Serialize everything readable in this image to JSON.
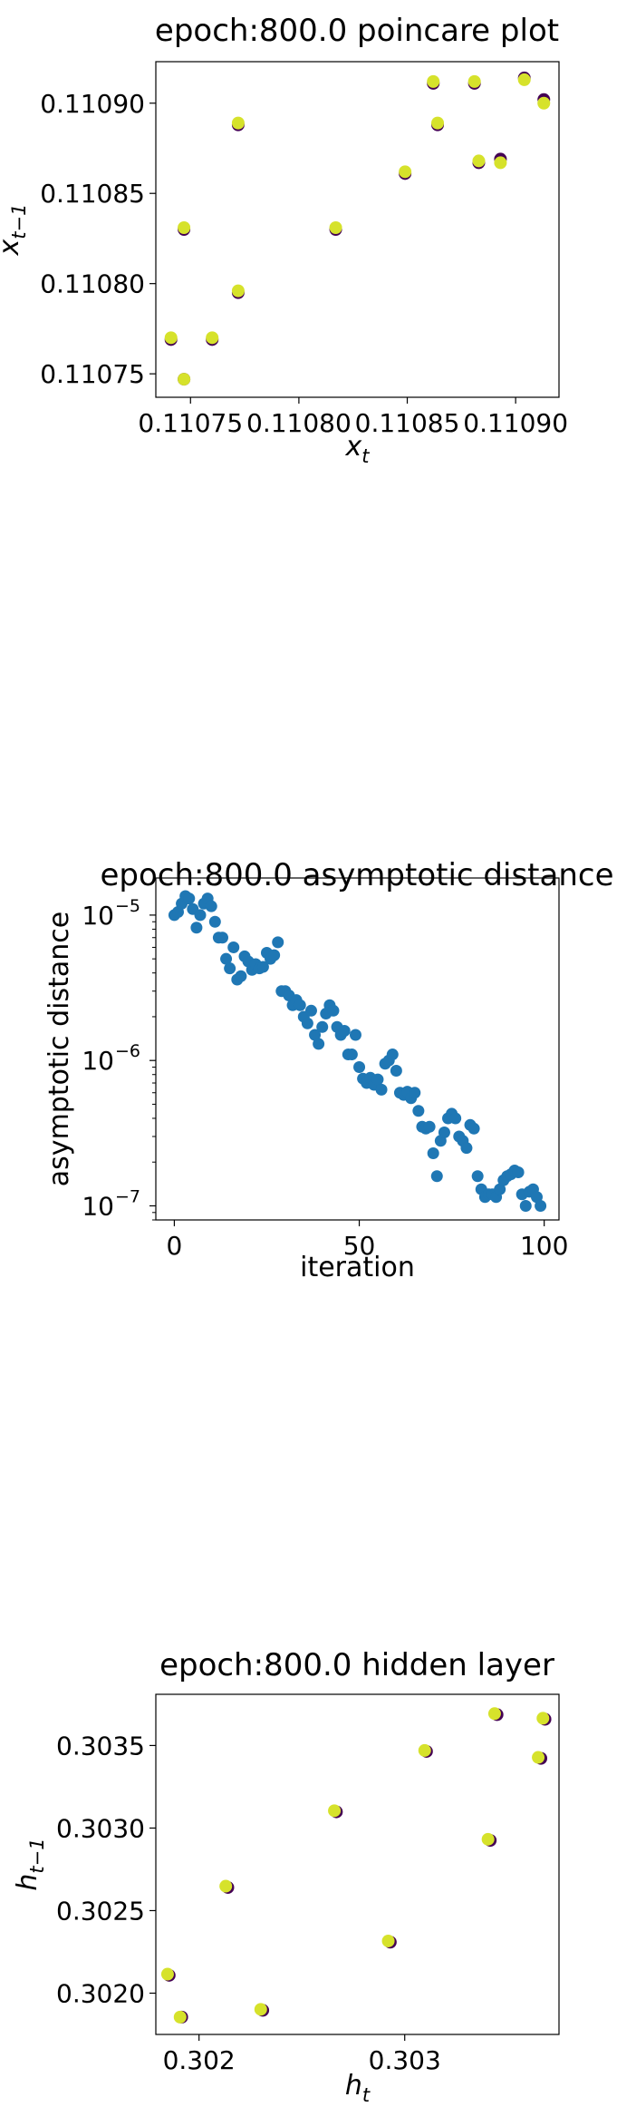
{
  "colors": {
    "dark_marker": "#440154",
    "yellow_marker": "#d6e22b",
    "blue_marker": "#1f77b4",
    "axis": "#000000",
    "background": "#ffffff"
  },
  "chart_data": [
    {
      "type": "scatter",
      "title": "epoch:800.0 poincare plot",
      "xlabel": "x_t",
      "ylabel": "x_{t-1}",
      "xlim": [
        0.110734,
        0.11092
      ],
      "ylim": [
        0.110737,
        0.110923
      ],
      "xticks": [
        0.11075,
        0.1108,
        0.11085,
        0.1109
      ],
      "xtick_labels": [
        "0.11075",
        "0.11080",
        "0.11085",
        "0.11090"
      ],
      "yticks": [
        0.11075,
        0.1108,
        0.11085,
        0.1109
      ],
      "ytick_labels": [
        "0.11075",
        "0.11080",
        "0.11085",
        "0.11090"
      ],
      "yscale": "linear",
      "series": [
        {
          "color": "#440154",
          "x": [
            0.110741,
            0.110747,
            0.110747,
            0.11076,
            0.110772,
            0.110772,
            0.110817,
            0.110849,
            0.110862,
            0.110864,
            0.110881,
            0.110883,
            0.110893,
            0.110904,
            0.110913
          ],
          "y": [
            0.110769,
            0.110747,
            0.11083,
            0.110769,
            0.110795,
            0.110888,
            0.11083,
            0.110861,
            0.110911,
            0.110888,
            0.110911,
            0.110867,
            0.110869,
            0.110914,
            0.110902
          ]
        },
        {
          "color": "#d6e22b",
          "x": [
            0.110741,
            0.110747,
            0.110747,
            0.11076,
            0.110772,
            0.110772,
            0.110817,
            0.110849,
            0.110862,
            0.110864,
            0.110881,
            0.110883,
            0.110893,
            0.110904,
            0.110913
          ],
          "y": [
            0.11077,
            0.110747,
            0.110831,
            0.11077,
            0.110796,
            0.110889,
            0.110831,
            0.110862,
            0.110912,
            0.110889,
            0.110912,
            0.110868,
            0.110867,
            0.110913,
            0.1109
          ]
        }
      ]
    },
    {
      "type": "scatter",
      "title": "epoch:800.0 asymptotic distance",
      "xlabel": "iteration",
      "ylabel": "asymptotic distance",
      "xlim": [
        -5,
        104
      ],
      "ylim": [
        8e-08,
        1.8e-05
      ],
      "yscale": "log",
      "xticks": [
        0,
        50,
        100
      ],
      "xtick_labels": [
        "0",
        "50",
        "100"
      ],
      "yticks": [
        1e-07,
        1e-06,
        1e-05
      ],
      "ytick_labels": [
        "10",
        "10",
        "10"
      ],
      "ytick_exponents": [
        "−7",
        "−6",
        "−5"
      ],
      "series": [
        {
          "color": "#1f77b4",
          "x": [
            0,
            1,
            2,
            3,
            4,
            5,
            6,
            7,
            8,
            9,
            10,
            11,
            12,
            13,
            14,
            15,
            16,
            17,
            18,
            19,
            20,
            21,
            22,
            23,
            24,
            25,
            26,
            27,
            28,
            29,
            30,
            31,
            32,
            33,
            34,
            35,
            36,
            37,
            38,
            39,
            40,
            41,
            42,
            43,
            44,
            45,
            46,
            47,
            48,
            49,
            50,
            51,
            52,
            53,
            54,
            55,
            56,
            57,
            58,
            59,
            60,
            61,
            62,
            63,
            64,
            65,
            66,
            67,
            68,
            69,
            70,
            71,
            72,
            73,
            74,
            75,
            76,
            77,
            78,
            79,
            80,
            81,
            82,
            83,
            84,
            85,
            86,
            87,
            88,
            89,
            90,
            91,
            92,
            93,
            94,
            95,
            96,
            97,
            98,
            99
          ],
          "y": [
            1e-05,
            1.05e-05,
            1.2e-05,
            1.35e-05,
            1.3e-05,
            1.1e-05,
            8.2e-06,
            1e-05,
            1.2e-05,
            1.3e-05,
            1.15e-05,
            9e-06,
            7e-06,
            7e-06,
            5e-06,
            4.3e-06,
            6e-06,
            3.6e-06,
            3.8e-06,
            5.2e-06,
            4.8e-06,
            4.2e-06,
            4.6e-06,
            4.3e-06,
            4.4e-06,
            5.5e-06,
            5e-06,
            5.3e-06,
            6.5e-06,
            3e-06,
            3e-06,
            2.8e-06,
            2.4e-06,
            2.6e-06,
            2.4e-06,
            2e-06,
            1.8e-06,
            2.2e-06,
            1.5e-06,
            1.3e-06,
            1.7e-06,
            2.1e-06,
            2.4e-06,
            2.2e-06,
            1.7e-06,
            1.5e-06,
            1.6e-06,
            1.1e-06,
            1.1e-06,
            1.5e-06,
            9e-07,
            7.5e-07,
            7e-07,
            7.6e-07,
            6.8e-07,
            7.4e-07,
            6.3e-07,
            9.5e-07,
            1e-06,
            1.1e-06,
            8.5e-07,
            6e-07,
            5.8e-07,
            6.1e-07,
            5.5e-07,
            6e-07,
            4.5e-07,
            3.5e-07,
            3.4e-07,
            3.5e-07,
            2.3e-07,
            1.6e-07,
            2.8e-07,
            3.2e-07,
            4e-07,
            4.3e-07,
            4e-07,
            3e-07,
            2.8e-07,
            2.5e-07,
            3.6e-07,
            3.4e-07,
            1.6e-07,
            1.3e-07,
            1.15e-07,
            1.2e-07,
            1.2e-07,
            1.15e-07,
            1.3e-07,
            1.5e-07,
            1.6e-07,
            1.65e-07,
            1.75e-07,
            1.7e-07,
            1.2e-07,
            1e-07,
            1.25e-07,
            1.3e-07,
            1.15e-07,
            1e-07
          ]
        }
      ]
    },
    {
      "type": "scatter",
      "title": "epoch:800.0 hidden layer",
      "xlabel": "h_t",
      "ylabel": "h_{t-1}",
      "xlim": [
        0.30179,
        0.30375
      ],
      "ylim": [
        0.30175,
        0.30381
      ],
      "yscale": "linear",
      "xticks": [
        0.302,
        0.303
      ],
      "xtick_labels": [
        "0.302",
        "0.303"
      ],
      "yticks": [
        0.302,
        0.3025,
        0.303,
        0.3035
      ],
      "ytick_labels": [
        "0.3020",
        "0.3025",
        "0.3030",
        "0.3035"
      ],
      "series": [
        {
          "color": "#440154",
          "x": [
            0.301855,
            0.301916,
            0.30214,
            0.30231,
            0.302668,
            0.30293,
            0.303106,
            0.303416,
            0.303449,
            0.303662,
            0.303682
          ],
          "y": [
            0.302108,
            0.301855,
            0.30264,
            0.301896,
            0.303098,
            0.302309,
            0.303464,
            0.302925,
            0.303687,
            0.303422,
            0.303659
          ]
        },
        {
          "color": "#d6e22b",
          "x": [
            0.301847,
            0.301908,
            0.30213,
            0.3023,
            0.302658,
            0.30292,
            0.303097,
            0.303405,
            0.303437,
            0.303649,
            0.303672
          ],
          "y": [
            0.302115,
            0.301855,
            0.302648,
            0.301902,
            0.303105,
            0.302316,
            0.30347,
            0.302932,
            0.303693,
            0.303428,
            0.303665
          ]
        }
      ]
    }
  ]
}
